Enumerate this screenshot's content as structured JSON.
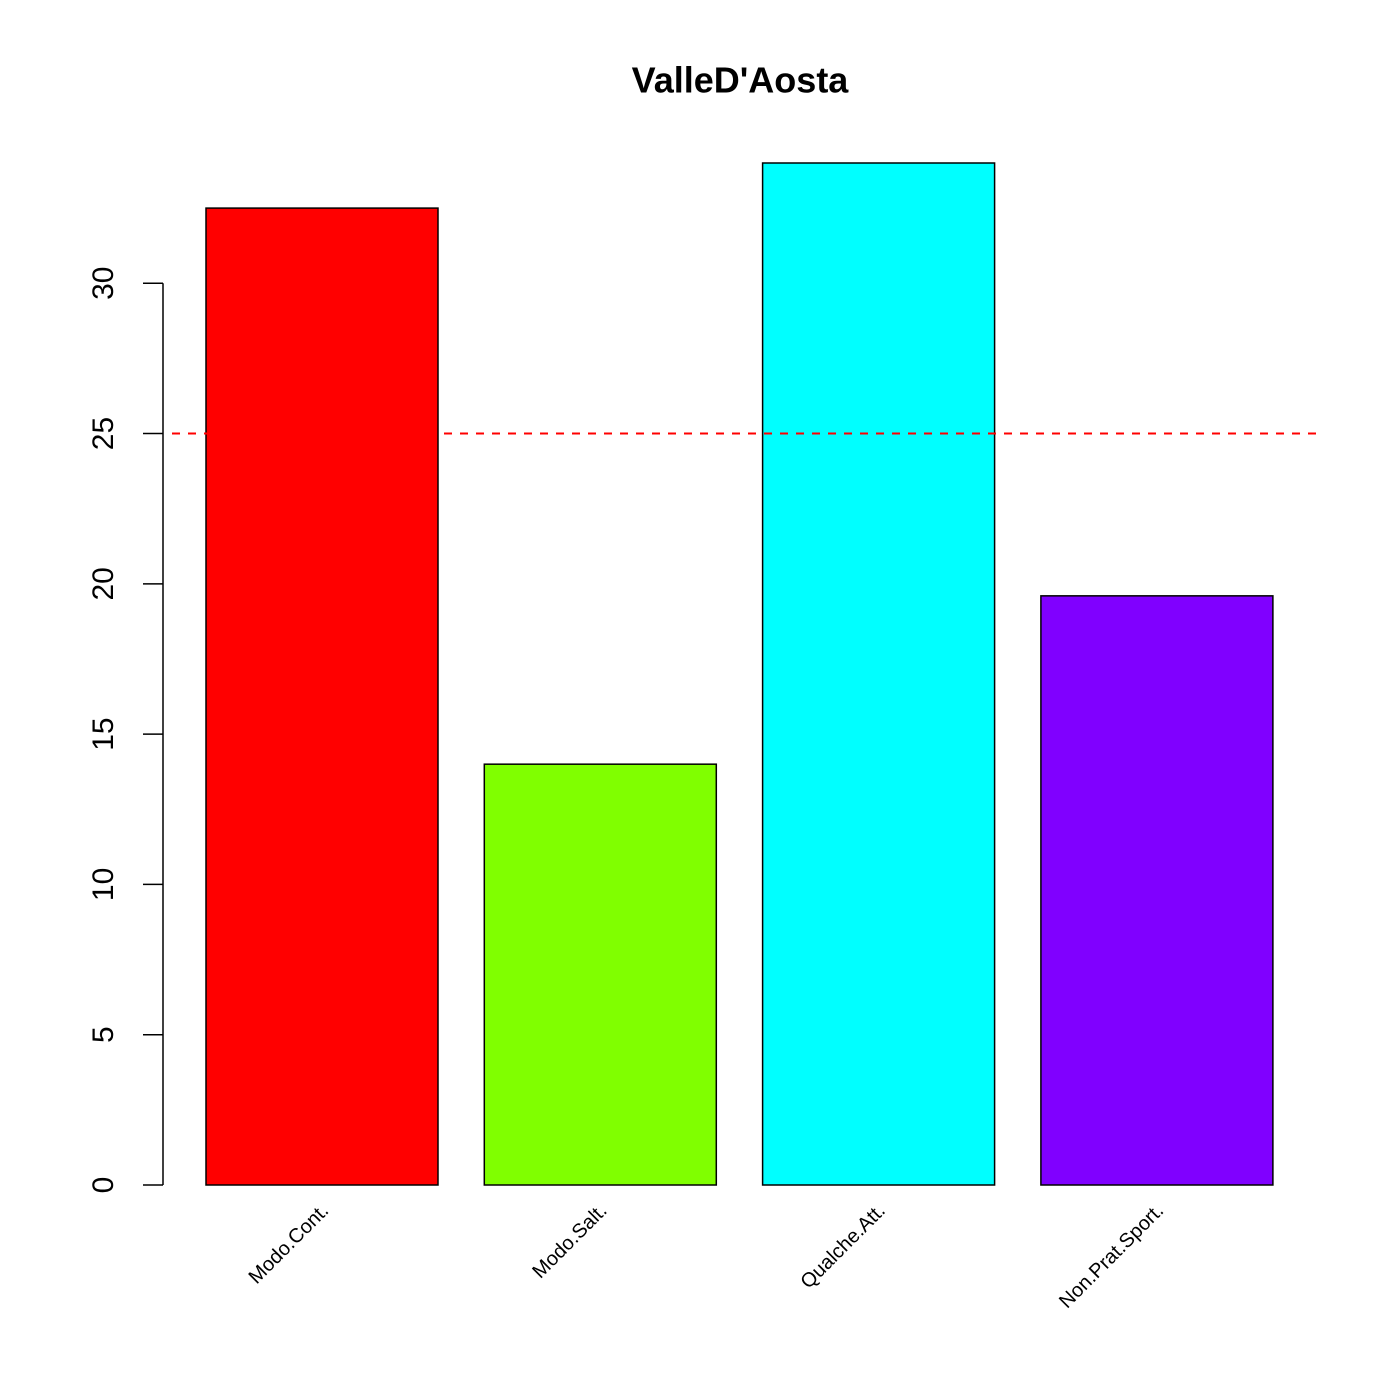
{
  "chart_data": {
    "type": "bar",
    "title": "ValleD'Aosta",
    "categories": [
      "Modo.Cont.",
      "Modo.Salt.",
      "Qualche.Att.",
      "Non.Prat.Sport."
    ],
    "values": [
      32.5,
      14.0,
      34.0,
      19.6
    ],
    "colors": [
      "#ff0000",
      "#80ff00",
      "#00ffff",
      "#8000ff"
    ],
    "ylim": [
      0,
      34
    ],
    "yticks": [
      0,
      5,
      10,
      15,
      20,
      25,
      30
    ],
    "reference_line": {
      "value": 25,
      "color": "#ff0000"
    }
  }
}
